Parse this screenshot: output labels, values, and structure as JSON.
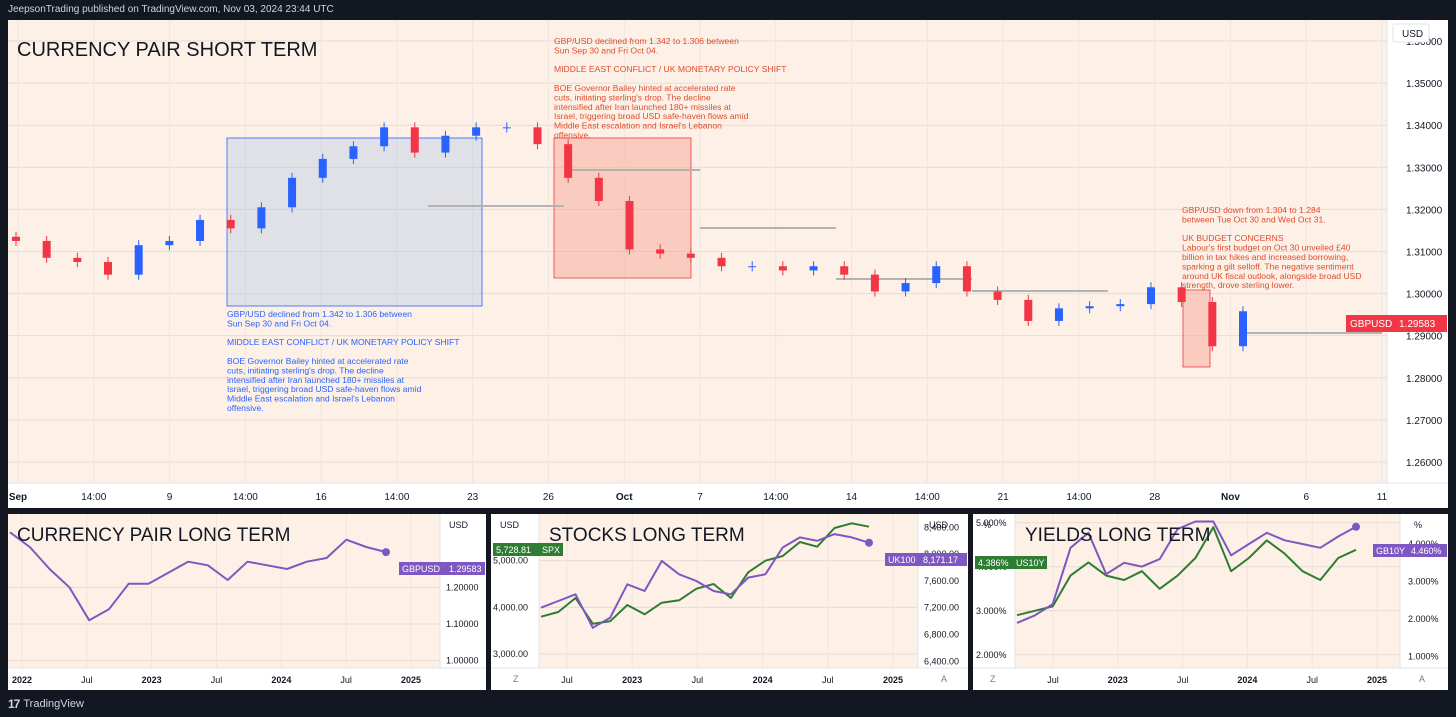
{
  "header": {
    "publisher": "JeepsonTrading published on TradingView.com, Nov 03, 2024 23:44 UTC"
  },
  "footer": {
    "brand": "TradingView"
  },
  "colors": {
    "panel_bg": "#fdf1e7",
    "up": "#2962ff",
    "down": "#f23645",
    "purple": "#7e57c2",
    "green": "#2e7d32",
    "note_blue": "#2962ff",
    "note_red": "#e04c2e"
  },
  "main": {
    "title": "CURRENCY PAIR SHORT TERM",
    "currency": "USD",
    "price_tag": {
      "symbol": "GBPUSD",
      "value": "1.29583"
    },
    "y_ticks": [
      "1.36000",
      "1.35000",
      "1.34000",
      "1.33000",
      "1.32000",
      "1.31000",
      "1.30000",
      "1.29000",
      "1.28000",
      "1.27000",
      "1.26000"
    ],
    "x_ticks": [
      "Sep",
      "14:00",
      "9",
      "14:00",
      "16",
      "14:00",
      "23",
      "26",
      "Oct",
      "7",
      "14:00",
      "14",
      "14:00",
      "21",
      "14:00",
      "28",
      "Nov",
      "6",
      "11"
    ],
    "note_blue": [
      "GBP/USD declined from 1.342 to 1.306 between",
      "Sun Sep 30 and Fri Oct 04.",
      "",
      "MIDDLE EAST CONFLICT / UK MONETARY POLICY SHIFT",
      "",
      "BOE Governor Bailey hinted at accelerated rate",
      "cuts, initiating sterling's drop. The decline",
      "intensified after Iran launched 180+ missiles at",
      "Israel, triggering broad USD safe-haven flows amid",
      "Middle East escalation and Israel's Lebanon",
      "offensive."
    ],
    "note_red": [
      "GBP/USD declined from 1.342 to 1.306 between",
      "Sun Sep 30 and Fri Oct 04.",
      "",
      "MIDDLE EAST CONFLICT / UK MONETARY POLICY SHIFT",
      "",
      "BOE Governor Bailey hinted at accelerated rate",
      "cuts, initiating sterling's drop. The decline",
      "intensified after Iran launched 180+ missiles at",
      "Israel, triggering broad USD safe-haven flows amid",
      "Middle East escalation and Israel's Lebanon",
      "offensive."
    ],
    "note_budget": [
      "GBP/USD down from 1.304 to 1.284",
      "between Tue Oct 30 and Wed Oct 31.",
      "",
      "UK BUDGET CONCERNS",
      "Labour's first budget on Oct 30 unveiled £40",
      "billion in tax hikes and increased borrowing,",
      "sparking a gilt selloff. The negative sentiment",
      "around UK fiscal outlook, alongside broad USD",
      "strength, drove sterling lower."
    ]
  },
  "panel_fx_long": {
    "title": "CURRENCY PAIR LONG TERM",
    "currency": "USD",
    "price_tag": {
      "symbol": "GBPUSD",
      "value": "1.29583"
    },
    "y_ticks": [
      "1.20000",
      "1.10000",
      "1.00000"
    ],
    "x_ticks": [
      "2022",
      "Jul",
      "2023",
      "Jul",
      "2024",
      "Jul",
      "2025"
    ]
  },
  "panel_stocks": {
    "title": "STOCKS LONG TERM",
    "currency_left": "USD",
    "currency_right": "USD",
    "tag_left": {
      "value": "5,728.81",
      "symbol": "SPX"
    },
    "tag_right": {
      "symbol": "UK100",
      "value": "8,171.17"
    },
    "y_ticks_left": [
      "5,000.00",
      "4,000.00",
      "3,000.00"
    ],
    "y_ticks_right": [
      "8,400.00",
      "8,000.00",
      "7,600.00",
      "7,200.00",
      "6,800.00",
      "6,400.00"
    ],
    "x_ticks": [
      "Jul",
      "2023",
      "Jul",
      "2024",
      "Jul",
      "2025"
    ],
    "z_label": "Z",
    "a_label": "A"
  },
  "panel_yields": {
    "title": "YIELDS LONG TERM",
    "unit_left": "%",
    "unit_right": "%",
    "tag_left": {
      "value": "4.386%",
      "symbol": "US10Y"
    },
    "tag_right": {
      "symbol": "GB10Y",
      "value": "4.460%"
    },
    "y_ticks_left": [
      "5.000%",
      "4.000%",
      "3.000%",
      "2.000%"
    ],
    "y_ticks_right": [
      "4.000%",
      "3.000%",
      "2.000%",
      "1.000%"
    ],
    "x_ticks": [
      "Jul",
      "2023",
      "Jul",
      "2024",
      "Jul",
      "2025"
    ],
    "z_label": "Z",
    "a_label": "A"
  },
  "chart_data": [
    {
      "type": "candlestick",
      "title": "CURRENCY PAIR SHORT TERM",
      "symbol": "GBPUSD",
      "ylim": [
        1.255,
        1.365
      ],
      "x": [
        "Sep 6",
        "Sep 9",
        "Sep 10",
        "Sep 11",
        "Sep 12",
        "Sep 13",
        "Sep 16",
        "Sep 17",
        "Sep 18",
        "Sep 19",
        "Sep 20",
        "Sep 23",
        "Sep 24",
        "Sep 25",
        "Sep 26",
        "Sep 27",
        "Sep 30",
        "Oct 1",
        "Oct 2",
        "Oct 3",
        "Oct 4",
        "Oct 7",
        "Oct 8",
        "Oct 9",
        "Oct 10",
        "Oct 11",
        "Oct 14",
        "Oct 15",
        "Oct 16",
        "Oct 17",
        "Oct 18",
        "Oct 21",
        "Oct 22",
        "Oct 23",
        "Oct 24",
        "Oct 25",
        "Oct 28",
        "Oct 29",
        "Oct 30",
        "Oct 31",
        "Nov 1"
      ],
      "close": [
        1.3125,
        1.3085,
        1.3075,
        1.3045,
        1.3115,
        1.3125,
        1.3175,
        1.3155,
        1.3205,
        1.3275,
        1.332,
        1.335,
        1.3395,
        1.3335,
        1.3375,
        1.3395,
        1.3395,
        1.3355,
        1.3275,
        1.322,
        1.3105,
        1.3095,
        1.3085,
        1.3065,
        1.3065,
        1.3055,
        1.3065,
        1.3045,
        1.3005,
        1.3025,
        1.3065,
        1.3005,
        1.2985,
        1.2935,
        1.2965,
        1.297,
        1.2975,
        1.3015,
        1.298,
        1.2875,
        1.2958
      ],
      "annotations": [
        "GBP/USD declined from 1.342 to 1.306 between Sun Sep 30 and Fri Oct 04. (MIDDLE EAST CONFLICT / UK MONETARY POLICY SHIFT)",
        "GBP/USD down from 1.304 to 1.284 between Tue Oct 30 and Wed Oct 31. (UK BUDGET CONCERNS)"
      ],
      "last": 1.29583
    },
    {
      "type": "line",
      "title": "CURRENCY PAIR LONG TERM",
      "x": [
        "2022 Jan",
        "2022 Mar",
        "2022 May",
        "2022 Jul",
        "2022 Sep",
        "2022 Oct",
        "2022 Dec",
        "2023 Feb",
        "2023 Apr",
        "2023 Jun",
        "2023 Aug",
        "2023 Oct",
        "2023 Dec",
        "2024 Feb",
        "2024 Apr",
        "2024 Jun",
        "2024 Aug",
        "2024 Sep",
        "2024 Oct",
        "2024 Nov"
      ],
      "series": [
        {
          "name": "GBPUSD",
          "values": [
            1.35,
            1.31,
            1.25,
            1.2,
            1.11,
            1.14,
            1.21,
            1.21,
            1.24,
            1.27,
            1.26,
            1.22,
            1.27,
            1.26,
            1.25,
            1.27,
            1.28,
            1.33,
            1.31,
            1.296
          ]
        }
      ],
      "ylim": [
        0.98,
        1.4
      ]
    },
    {
      "type": "line",
      "title": "STOCKS LONG TERM",
      "x": [
        "2022 Jun",
        "2022 Jul",
        "2022 Aug",
        "2022 Sep",
        "2022 Oct",
        "2022 Nov",
        "2022 Dec",
        "2023 Feb",
        "2023 Apr",
        "2023 Jun",
        "2023 Aug",
        "2023 Oct",
        "2023 Dec",
        "2024 Feb",
        "2024 Apr",
        "2024 Jun",
        "2024 Aug",
        "2024 Sep",
        "2024 Oct",
        "2024 Nov"
      ],
      "series": [
        {
          "name": "SPX",
          "axis": "left",
          "values": [
            3800,
            3900,
            4200,
            3650,
            3700,
            4050,
            3850,
            4100,
            4150,
            4400,
            4500,
            4200,
            4750,
            5000,
            5100,
            5400,
            5300,
            5700,
            5800,
            5728.81
          ]
        },
        {
          "name": "UK100",
          "axis": "right",
          "values": [
            7200,
            7300,
            7400,
            6900,
            7050,
            7550,
            7450,
            7900,
            7700,
            7600,
            7450,
            7400,
            7650,
            7700,
            8100,
            8250,
            8200,
            8300,
            8250,
            8171.17
          ]
        }
      ],
      "ylim_left": [
        2700,
        6000
      ],
      "ylim_right": [
        6300,
        8600
      ]
    },
    {
      "type": "line",
      "title": "YIELDS LONG TERM",
      "x": [
        "2022 Jun",
        "2022 Jul",
        "2022 Aug",
        "2022 Sep",
        "2022 Oct",
        "2022 Nov",
        "2022 Dec",
        "2023 Feb",
        "2023 Apr",
        "2023 Jun",
        "2023 Aug",
        "2023 Oct",
        "2023 Dec",
        "2024 Feb",
        "2024 Apr",
        "2024 Jun",
        "2024 Aug",
        "2024 Sep",
        "2024 Oct",
        "2024 Nov"
      ],
      "series": [
        {
          "name": "US10Y",
          "axis": "left",
          "values": [
            2.9,
            3.0,
            3.1,
            3.8,
            4.1,
            3.8,
            3.7,
            3.9,
            3.5,
            3.8,
            4.2,
            4.9,
            3.9,
            4.2,
            4.6,
            4.3,
            3.9,
            3.7,
            4.2,
            4.386
          ]
        },
        {
          "name": "GB10Y",
          "axis": "right",
          "values": [
            1.9,
            2.1,
            2.4,
            3.9,
            4.3,
            3.2,
            3.5,
            3.4,
            3.6,
            4.4,
            4.6,
            4.6,
            3.7,
            4.0,
            4.3,
            4.1,
            4.0,
            3.9,
            4.2,
            4.46
          ]
        }
      ],
      "ylim_left": [
        1.7,
        5.2
      ],
      "ylim_right": [
        0.7,
        4.8
      ]
    }
  ]
}
